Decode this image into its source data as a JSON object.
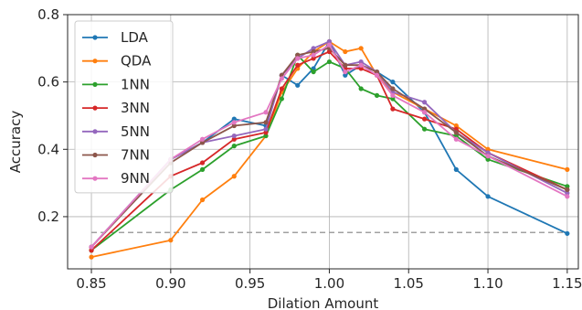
{
  "chart_data": {
    "type": "line",
    "title": "",
    "xlabel": "Dilation Amount",
    "ylabel": "Accuracy",
    "xlim": [
      0.835,
      1.157
    ],
    "ylim": [
      0.045,
      0.8
    ],
    "xticks": [
      0.85,
      0.9,
      0.95,
      1.0,
      1.05,
      1.1,
      1.15
    ],
    "xtick_labels": [
      "0.85",
      "0.90",
      "0.95",
      "1.00",
      "1.05",
      "1.10",
      "1.15"
    ],
    "yticks": [
      0.2,
      0.4,
      0.6,
      0.8
    ],
    "ytick_labels": [
      "0.2",
      "0.4",
      "0.6",
      "0.8"
    ],
    "grid": true,
    "legend_position": "upper-left",
    "x": [
      0.85,
      0.9,
      0.92,
      0.94,
      0.96,
      0.97,
      0.98,
      0.99,
      1.0,
      1.01,
      1.02,
      1.03,
      1.04,
      1.06,
      1.08,
      1.1,
      1.15
    ],
    "reference_line": {
      "y": 0.153,
      "style": "dashed",
      "color": "#a0a0a0"
    },
    "series": [
      {
        "name": "LDA",
        "color": "#1f77b4",
        "values": [
          0.11,
          0.37,
          0.42,
          0.49,
          0.47,
          0.62,
          0.59,
          0.64,
          0.72,
          0.62,
          0.65,
          0.63,
          0.6,
          0.51,
          0.34,
          0.26,
          0.15
        ]
      },
      {
        "name": "QDA",
        "color": "#ff7f0e",
        "values": [
          0.08,
          0.13,
          0.25,
          0.32,
          0.44,
          0.57,
          0.64,
          0.69,
          0.72,
          0.69,
          0.7,
          0.62,
          0.57,
          0.52,
          0.47,
          0.4,
          0.34
        ]
      },
      {
        "name": "1NN",
        "color": "#2ca02c",
        "values": [
          0.1,
          0.28,
          0.34,
          0.41,
          0.44,
          0.55,
          0.68,
          0.63,
          0.66,
          0.64,
          0.58,
          0.56,
          0.55,
          0.46,
          0.44,
          0.37,
          0.29
        ]
      },
      {
        "name": "3NN",
        "color": "#d62728",
        "values": [
          0.1,
          0.32,
          0.36,
          0.43,
          0.45,
          0.58,
          0.65,
          0.67,
          0.69,
          0.64,
          0.64,
          0.62,
          0.52,
          0.49,
          0.46,
          0.39,
          0.28
        ]
      },
      {
        "name": "5NN",
        "color": "#9467bd",
        "values": [
          0.11,
          0.37,
          0.42,
          0.44,
          0.46,
          0.62,
          0.67,
          0.7,
          0.72,
          0.65,
          0.66,
          0.63,
          0.57,
          0.54,
          0.45,
          0.39,
          0.27
        ]
      },
      {
        "name": "7NN",
        "color": "#8c564b",
        "values": [
          0.11,
          0.36,
          0.42,
          0.47,
          0.48,
          0.62,
          0.68,
          0.69,
          0.7,
          0.65,
          0.65,
          0.63,
          0.58,
          0.52,
          0.45,
          0.38,
          0.28
        ]
      },
      {
        "name": "9NN",
        "color": "#e377c2",
        "values": [
          0.11,
          0.37,
          0.43,
          0.48,
          0.51,
          0.61,
          0.67,
          0.68,
          0.71,
          0.63,
          0.65,
          0.62,
          0.56,
          0.51,
          0.43,
          0.38,
          0.26
        ]
      }
    ]
  }
}
